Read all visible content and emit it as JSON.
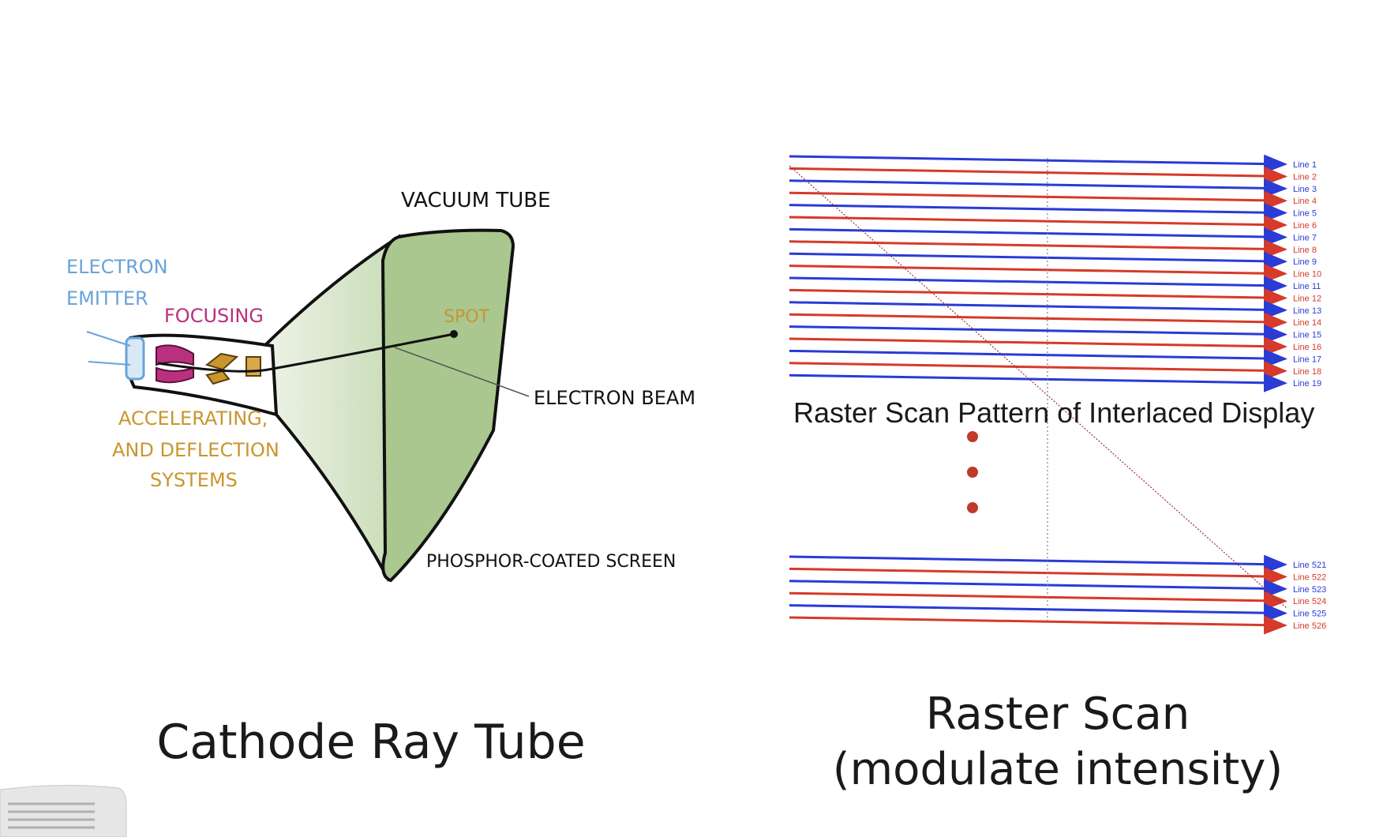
{
  "crt": {
    "labels": {
      "vacuum_tube": "VACUUM TUBE",
      "electron_emitter_1": "ELECTRON",
      "electron_emitter_2": "EMITTER",
      "focusing": "FOCUSING",
      "spot": "SPOT",
      "electron_beam": "ELECTRON BEAM",
      "accelerating_1": "ACCELERATING,",
      "accelerating_2": "AND DEFLECTION",
      "accelerating_3": "SYSTEMS",
      "phosphor_screen": "PHOSPHOR-COATED SCREEN"
    },
    "colors": {
      "emitter": "#6aa3d8",
      "focusing": "#b8317f",
      "accelerating": "#c9962e",
      "tube_fill": "#c8dcb6",
      "screen_fill": "#a9c78f"
    },
    "caption": "Cathode Ray Tube"
  },
  "raster": {
    "title": "Raster Scan Pattern of Interlaced Display",
    "top_lines": [
      "Line 1",
      "Line 2",
      "Line 3",
      "Line 4",
      "Line 5",
      "Line 6",
      "Line 7",
      "Line 8",
      "Line 9",
      "Line 10",
      "Line 11",
      "Line 12",
      "Line 13",
      "Line 14",
      "Line 15",
      "Line 16",
      "Line 17",
      "Line 18",
      "Line 19"
    ],
    "bottom_lines": [
      "Line 521",
      "Line 522",
      "Line 523",
      "Line 524",
      "Line 525",
      "Line 526"
    ],
    "colors": {
      "odd": "#2a3bd6",
      "even": "#d63a2a",
      "dots": "#c0392b"
    },
    "caption_line1": "Raster Scan",
    "caption_line2": "(modulate intensity)"
  }
}
